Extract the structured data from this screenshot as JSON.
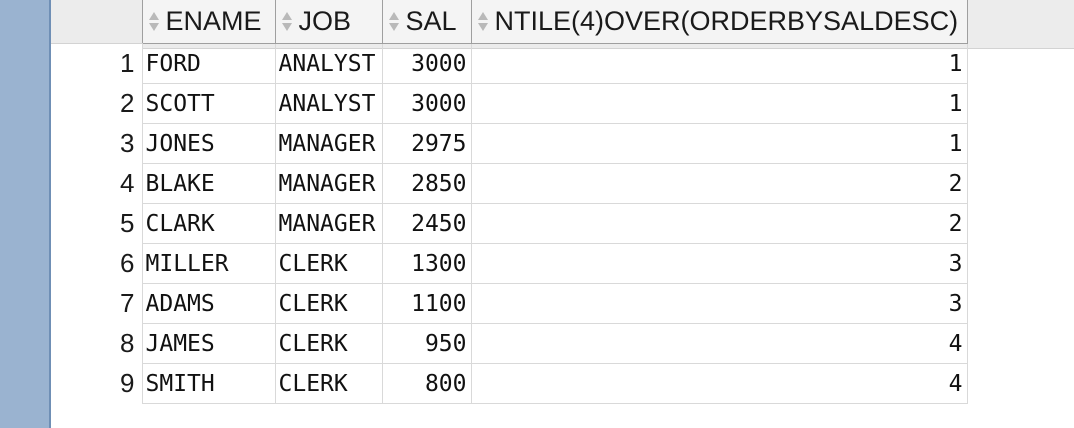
{
  "grid": {
    "columns": [
      "ENAME",
      "JOB",
      "SAL",
      "NTILE(4)OVER(ORDERBYSALDESC)"
    ],
    "rows": [
      {
        "n": "1",
        "ename": "FORD",
        "job": "ANALYST",
        "sal": "3000",
        "ntile": "1"
      },
      {
        "n": "2",
        "ename": "SCOTT",
        "job": "ANALYST",
        "sal": "3000",
        "ntile": "1"
      },
      {
        "n": "3",
        "ename": "JONES",
        "job": "MANAGER",
        "sal": "2975",
        "ntile": "1"
      },
      {
        "n": "4",
        "ename": "BLAKE",
        "job": "MANAGER",
        "sal": "2850",
        "ntile": "2"
      },
      {
        "n": "5",
        "ename": "CLARK",
        "job": "MANAGER",
        "sal": "2450",
        "ntile": "2"
      },
      {
        "n": "6",
        "ename": "MILLER",
        "job": "CLERK",
        "sal": "1300",
        "ntile": "3"
      },
      {
        "n": "7",
        "ename": "ADAMS",
        "job": "CLERK",
        "sal": "1100",
        "ntile": "3"
      },
      {
        "n": "8",
        "ename": "JAMES",
        "job": "CLERK",
        "sal": "950",
        "ntile": "4"
      },
      {
        "n": "9",
        "ename": "SMITH",
        "job": "CLERK",
        "sal": "800",
        "ntile": "4"
      }
    ]
  },
  "colors": {
    "gutter": "#9ab3d0",
    "header_bg": "#f4f4f4",
    "grid_line": "#d9d9d9"
  }
}
